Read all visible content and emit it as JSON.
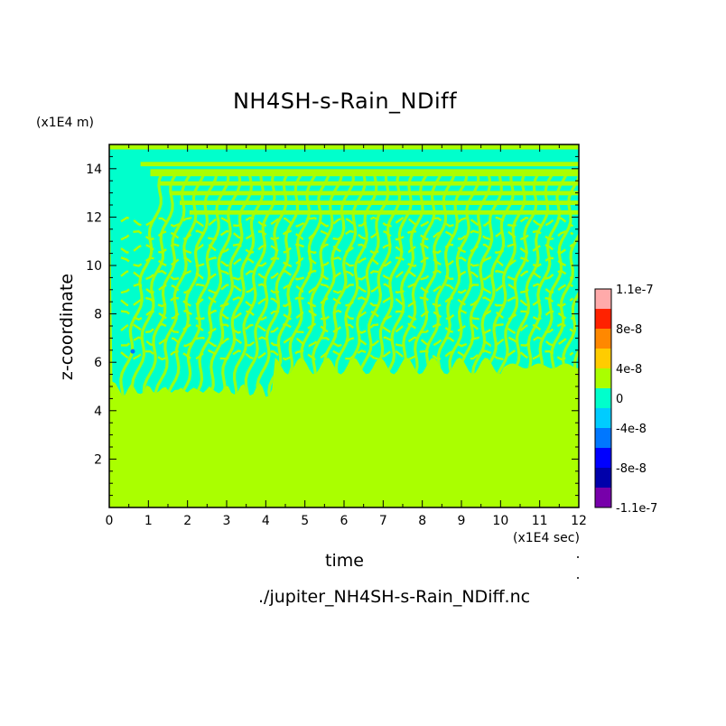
{
  "chart_data": {
    "type": "heatmap",
    "title": "NH4SH-s-Rain_NDiff",
    "xlabel": "time",
    "ylabel": "z-coordinate",
    "x_unit": "(x1E4 sec)",
    "y_unit": "(x1E4 m)",
    "xlim": [
      0,
      12
    ],
    "ylim": [
      0,
      15
    ],
    "xticks": [
      "0",
      "1",
      "2",
      "3",
      "4",
      "5",
      "6",
      "7",
      "8",
      "9",
      "10",
      "11",
      "12"
    ],
    "yticks": [
      "2",
      "4",
      "6",
      "8",
      "10",
      "12",
      "14"
    ],
    "colorbar": {
      "labels": [
        "1.1e-7",
        "8e-8",
        "4e-8",
        "0",
        "-4e-8",
        "-8e-8",
        "-1.1e-7"
      ],
      "levels": [
        {
          "color": "#ffaaaa"
        },
        {
          "color": "#ff2200"
        },
        {
          "color": "#ff8800"
        },
        {
          "color": "#ffcc00"
        },
        {
          "color": "#aaff00"
        },
        {
          "color": "#00ffcc"
        },
        {
          "color": "#00ccff"
        },
        {
          "color": "#0077ff"
        },
        {
          "color": "#0000ff"
        },
        {
          "color": "#0000aa"
        },
        {
          "color": "#7700aa"
        }
      ]
    },
    "field": {
      "near_zero_positive_color": "#aaff00",
      "near_zero_negative_color": "#00ffcc",
      "lower_uniform_top_z": 4.5,
      "top_z": 14.8,
      "banded_region_z": [
        4.5,
        14.8
      ],
      "upper_stripes_z": [
        14.1,
        13.8,
        13.3,
        12.9,
        12.5,
        12.1
      ]
    },
    "footer_file": "./jupiter_NH4SH-s-Rain_NDiff.nc"
  }
}
